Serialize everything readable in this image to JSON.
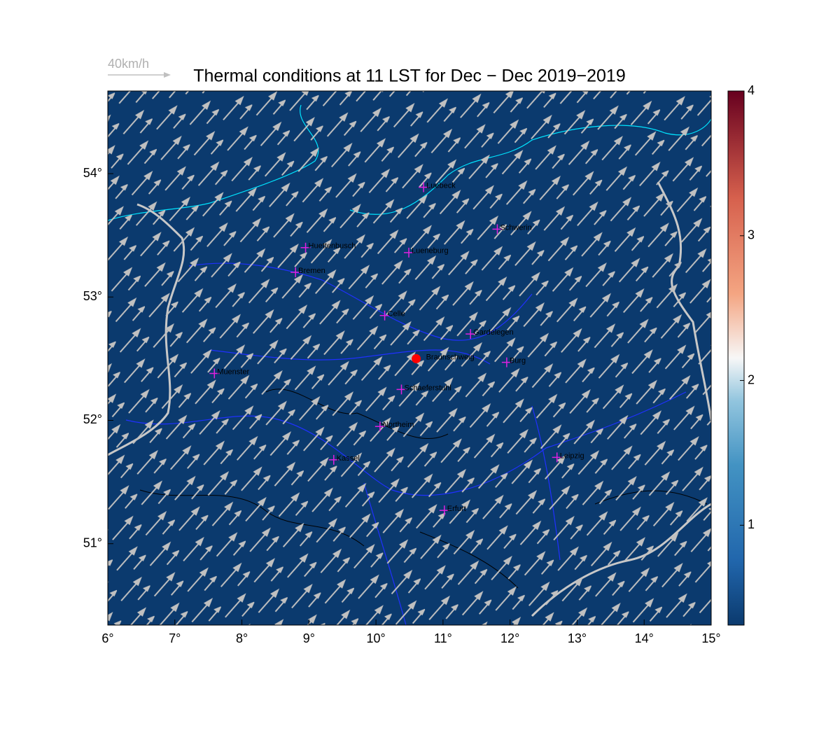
{
  "map": {
    "title": "Thermal conditions at 11 LST for Dec − Dec  2019−2019",
    "wind_reference": "40km/h",
    "xlim": [
      6,
      15
    ],
    "ylim": [
      50.34,
      54.67
    ],
    "xticks": [
      {
        "value": 6,
        "label": "6°"
      },
      {
        "value": 7,
        "label": "7°"
      },
      {
        "value": 8,
        "label": "8°"
      },
      {
        "value": 9,
        "label": "9°"
      },
      {
        "value": 10,
        "label": "10°"
      },
      {
        "value": 11,
        "label": "11°"
      },
      {
        "value": 12,
        "label": "12°"
      },
      {
        "value": 13,
        "label": "13°"
      },
      {
        "value": 14,
        "label": "14°"
      },
      {
        "value": 15,
        "label": "15°"
      }
    ],
    "yticks": [
      {
        "value": 51,
        "label": "51°"
      },
      {
        "value": 52,
        "label": "52°"
      },
      {
        "value": 53,
        "label": "53°"
      },
      {
        "value": 54,
        "label": "54°"
      }
    ],
    "colorbar": {
      "clim": [
        0.31,
        4
      ],
      "ticks": [
        1,
        2,
        3,
        4
      ]
    },
    "cities": [
      {
        "name": "Luebeck",
        "lon": 10.71,
        "lat": 53.89
      },
      {
        "name": "Schwerin",
        "lon": 11.81,
        "lat": 53.55
      },
      {
        "name": "Huettenbusch",
        "lon": 8.95,
        "lat": 53.4
      },
      {
        "name": "Lueneburg",
        "lon": 10.49,
        "lat": 53.36
      },
      {
        "name": "Bremen",
        "lon": 8.8,
        "lat": 53.2
      },
      {
        "name": "Celle",
        "lon": 10.13,
        "lat": 52.85
      },
      {
        "name": "Gardelegen",
        "lon": 11.41,
        "lat": 52.7
      },
      {
        "name": "Burg",
        "lon": 11.95,
        "lat": 52.47
      },
      {
        "name": "Muenster",
        "lon": 7.59,
        "lat": 52.38
      },
      {
        "name": "Schaeferstuhl",
        "lon": 10.38,
        "lat": 52.25
      },
      {
        "name": "Northeim",
        "lon": 10.06,
        "lat": 51.95
      },
      {
        "name": "Kassel",
        "lon": 9.37,
        "lat": 51.68
      },
      {
        "name": "Leipzig",
        "lon": 12.7,
        "lat": 51.7
      },
      {
        "name": "Erfurt",
        "lon": 11.02,
        "lat": 51.27
      }
    ],
    "site": {
      "name": "Braunschweig",
      "lon": 10.6,
      "lat": 52.5
    }
  }
}
